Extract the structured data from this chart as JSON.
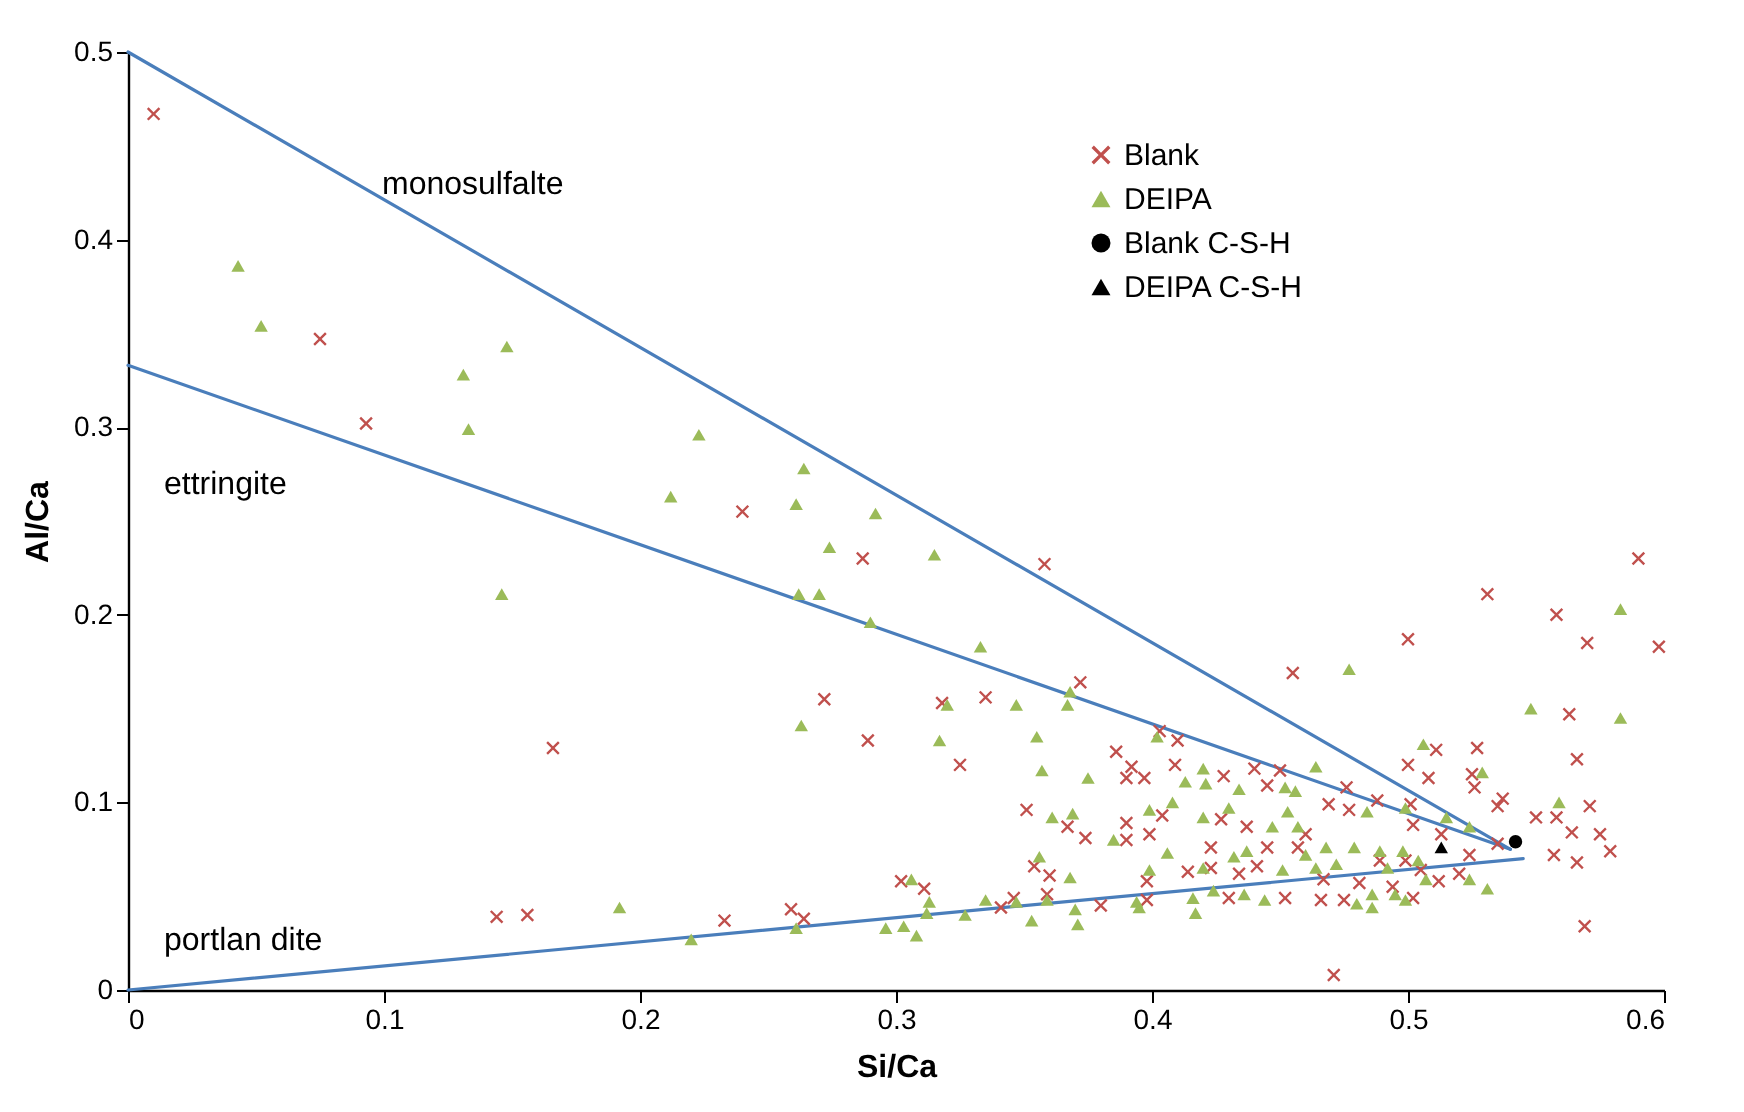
{
  "chart_data": {
    "type": "scatter",
    "xlabel": "Si/Ca",
    "ylabel": "Al/Ca",
    "xlim": [
      0,
      0.6
    ],
    "ylim": [
      0,
      0.5
    ],
    "xticks": [
      {
        "value": 0,
        "label": "0"
      },
      0.1,
      0.2,
      0.3,
      0.4,
      0.5,
      0.6
    ],
    "yticks": [
      {
        "value": 0,
        "label": "0"
      },
      0.1,
      0.2,
      0.3,
      0.4,
      0.5
    ],
    "grid": false,
    "legend": "top right",
    "annotations": [
      "monosulfalte",
      "ettringite",
      "portlan dite"
    ],
    "series": [
      {
        "type": "line",
        "color": "#4a7ebb",
        "line_style": "solid",
        "x": [
          0,
          0.54
        ],
        "values": [
          0.5,
          0.075
        ]
      },
      {
        "type": "line",
        "color": "#4a7ebb",
        "line_style": "solid",
        "x": [
          0,
          0.54
        ],
        "values": [
          0.333,
          0.075
        ]
      },
      {
        "type": "line",
        "color": "#4a7ebb",
        "line_style": "solid",
        "x": [
          0,
          0.545
        ],
        "values": [
          0,
          0.07
        ]
      },
      {
        "name": "Blank",
        "color": "#c0504d",
        "marker": "cross",
        "x": [
          0.01,
          0.075,
          0.093,
          0.24,
          0.287,
          0.272,
          0.166,
          0.289,
          0.144,
          0.156,
          0.233,
          0.259,
          0.264,
          0.358,
          0.59,
          0.531,
          0.558,
          0.598,
          0.5,
          0.57,
          0.455,
          0.563,
          0.566,
          0.325,
          0.372,
          0.335,
          0.318,
          0.403,
          0.41,
          0.386,
          0.392,
          0.39,
          0.397,
          0.409,
          0.428,
          0.44,
          0.45,
          0.445,
          0.476,
          0.5,
          0.511,
          0.527,
          0.508,
          0.526,
          0.525,
          0.488,
          0.501,
          0.469,
          0.477,
          0.351,
          0.367,
          0.374,
          0.39,
          0.39,
          0.399,
          0.404,
          0.427,
          0.537,
          0.535,
          0.55,
          0.558,
          0.571,
          0.564,
          0.575,
          0.579,
          0.557,
          0.566,
          0.569,
          0.471,
          0.423,
          0.437,
          0.445,
          0.441,
          0.457,
          0.46,
          0.467,
          0.466,
          0.475,
          0.481,
          0.489,
          0.499,
          0.505,
          0.512,
          0.52,
          0.502,
          0.494,
          0.452,
          0.434,
          0.43,
          0.423,
          0.414,
          0.398,
          0.398,
          0.38,
          0.359,
          0.36,
          0.354,
          0.341,
          0.346,
          0.311,
          0.302,
          0.524,
          0.535,
          0.513,
          0.502
        ],
        "values": [
          0.467,
          0.347,
          0.302,
          0.255,
          0.23,
          0.155,
          0.129,
          0.133,
          0.039,
          0.04,
          0.037,
          0.043,
          0.038,
          0.227,
          0.23,
          0.211,
          0.2,
          0.183,
          0.187,
          0.185,
          0.169,
          0.147,
          0.123,
          0.12,
          0.164,
          0.156,
          0.153,
          0.138,
          0.133,
          0.127,
          0.119,
          0.113,
          0.113,
          0.12,
          0.114,
          0.118,
          0.117,
          0.109,
          0.108,
          0.12,
          0.128,
          0.129,
          0.113,
          0.108,
          0.115,
          0.101,
          0.099,
          0.099,
          0.096,
          0.096,
          0.087,
          0.081,
          0.089,
          0.08,
          0.083,
          0.093,
          0.091,
          0.102,
          0.098,
          0.092,
          0.092,
          0.098,
          0.084,
          0.083,
          0.074,
          0.072,
          0.068,
          0.034,
          0.008,
          0.076,
          0.087,
          0.076,
          0.066,
          0.076,
          0.083,
          0.059,
          0.048,
          0.048,
          0.057,
          0.069,
          0.069,
          0.064,
          0.058,
          0.062,
          0.049,
          0.055,
          0.049,
          0.062,
          0.049,
          0.065,
          0.063,
          0.058,
          0.048,
          0.045,
          0.051,
          0.061,
          0.066,
          0.044,
          0.049,
          0.054,
          0.058,
          0.072,
          0.078,
          0.083,
          0.088
        ]
      },
      {
        "name": "DEIPA",
        "color": "#9bbb59",
        "marker": "triangle",
        "x": [
          0.043,
          0.052,
          0.131,
          0.148,
          0.133,
          0.223,
          0.264,
          0.212,
          0.261,
          0.292,
          0.146,
          0.274,
          0.262,
          0.27,
          0.29,
          0.263,
          0.192,
          0.22,
          0.261,
          0.315,
          0.333,
          0.477,
          0.583,
          0.583,
          0.548,
          0.368,
          0.367,
          0.32,
          0.347,
          0.317,
          0.355,
          0.357,
          0.375,
          0.402,
          0.42,
          0.421,
          0.413,
          0.434,
          0.464,
          0.452,
          0.456,
          0.506,
          0.529,
          0.559,
          0.408,
          0.399,
          0.43,
          0.361,
          0.369,
          0.385,
          0.42,
          0.453,
          0.457,
          0.484,
          0.499,
          0.515,
          0.524,
          0.356,
          0.368,
          0.406,
          0.42,
          0.399,
          0.306,
          0.313,
          0.312,
          0.296,
          0.303,
          0.308,
          0.327,
          0.335,
          0.347,
          0.353,
          0.359,
          0.37,
          0.371,
          0.394,
          0.395,
          0.417,
          0.416,
          0.424,
          0.432,
          0.437,
          0.436,
          0.444,
          0.447,
          0.451,
          0.46,
          0.464,
          0.468,
          0.472,
          0.479,
          0.48,
          0.486,
          0.486,
          0.495,
          0.499,
          0.492,
          0.489,
          0.498,
          0.507,
          0.524,
          0.531,
          0.504
        ],
        "values": [
          0.386,
          0.354,
          0.328,
          0.343,
          0.299,
          0.296,
          0.278,
          0.263,
          0.259,
          0.254,
          0.211,
          0.236,
          0.211,
          0.211,
          0.196,
          0.141,
          0.044,
          0.027,
          0.033,
          0.232,
          0.183,
          0.171,
          0.203,
          0.145,
          0.15,
          0.159,
          0.152,
          0.152,
          0.152,
          0.133,
          0.135,
          0.117,
          0.113,
          0.135,
          0.118,
          0.11,
          0.111,
          0.107,
          0.119,
          0.108,
          0.106,
          0.131,
          0.116,
          0.1,
          0.1,
          0.096,
          0.097,
          0.092,
          0.094,
          0.08,
          0.092,
          0.095,
          0.087,
          0.095,
          0.097,
          0.092,
          0.087,
          0.071,
          0.06,
          0.073,
          0.065,
          0.064,
          0.059,
          0.047,
          0.041,
          0.033,
          0.034,
          0.029,
          0.04,
          0.048,
          0.047,
          0.037,
          0.048,
          0.043,
          0.035,
          0.047,
          0.044,
          0.041,
          0.049,
          0.053,
          0.071,
          0.074,
          0.051,
          0.048,
          0.087,
          0.064,
          0.072,
          0.065,
          0.076,
          0.067,
          0.076,
          0.046,
          0.044,
          0.051,
          0.051,
          0.048,
          0.065,
          0.074,
          0.074,
          0.059,
          0.059,
          0.054,
          0.069
        ]
      },
      {
        "name": "Blank C-S-H",
        "color": "#000000",
        "marker": "circle",
        "x": [
          0.542
        ],
        "values": [
          0.079
        ]
      },
      {
        "name": "DEIPA C-S-H",
        "color": "#000000",
        "marker": "triangle",
        "x": [
          0.513
        ],
        "values": [
          0.076
        ]
      }
    ]
  }
}
